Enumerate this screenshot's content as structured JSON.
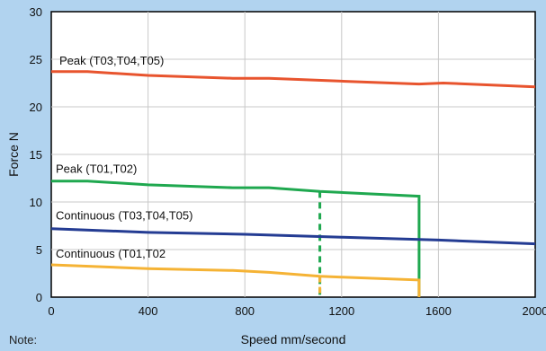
{
  "chart_data": {
    "type": "line",
    "xlabel": "Speed mm/second",
    "ylabel": "Force N",
    "xlim": [
      0,
      2000
    ],
    "ylim": [
      0,
      30
    ],
    "x_ticks": [
      "0",
      "400",
      "800",
      "1200",
      "1600",
      "2000"
    ],
    "y_ticks": [
      "0",
      "5",
      "10",
      "15",
      "20",
      "25",
      "30"
    ],
    "grid": true,
    "series": [
      {
        "name": "Peak (T03,T04,T05)",
        "color": "#e8542e",
        "points": [
          [
            0,
            23.7
          ],
          [
            150,
            23.7
          ],
          [
            400,
            23.3
          ],
          [
            750,
            23.0
          ],
          [
            900,
            23.0
          ],
          [
            1200,
            22.7
          ],
          [
            1520,
            22.4
          ],
          [
            1620,
            22.5
          ],
          [
            2000,
            22.1
          ]
        ]
      },
      {
        "name": "Peak (T01,T02)",
        "color": "#1fa84f",
        "points": [
          [
            0,
            12.2
          ],
          [
            150,
            12.2
          ],
          [
            400,
            11.8
          ],
          [
            750,
            11.5
          ],
          [
            900,
            11.5
          ],
          [
            1110,
            11.1
          ],
          [
            1200,
            11.0
          ],
          [
            1520,
            10.6
          ],
          [
            1520,
            0
          ]
        ],
        "dashed_drop": {
          "x": 1110,
          "from": 11.1,
          "to": 0
        }
      },
      {
        "name": "Continuous (T03,T04,T05)",
        "color": "#243c93",
        "points": [
          [
            0,
            7.2
          ],
          [
            400,
            6.8
          ],
          [
            800,
            6.6
          ],
          [
            1200,
            6.3
          ],
          [
            1600,
            6.0
          ],
          [
            2000,
            5.6
          ]
        ]
      },
      {
        "name": "Continuous (T01,T02",
        "color": "#f5b335",
        "points": [
          [
            0,
            3.4
          ],
          [
            400,
            3.0
          ],
          [
            750,
            2.8
          ],
          [
            900,
            2.6
          ],
          [
            1110,
            2.2
          ],
          [
            1200,
            2.1
          ],
          [
            1520,
            1.8
          ],
          [
            1520,
            0
          ]
        ],
        "dashed_drop": {
          "x": 1110,
          "from": 2.2,
          "to": 0
        }
      }
    ]
  },
  "note": "Note:"
}
